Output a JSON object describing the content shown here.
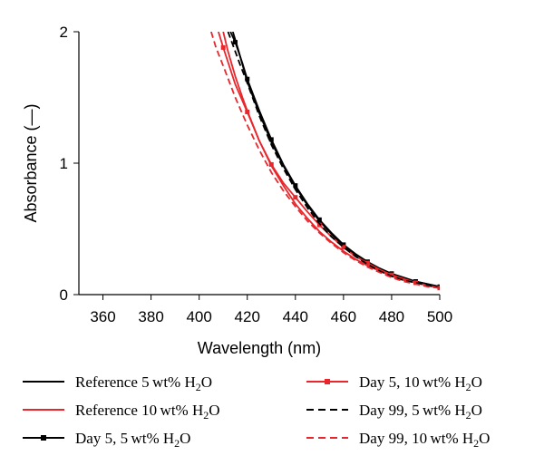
{
  "chart_data": {
    "type": "line",
    "xlabel": "Wavelength (nm)",
    "ylabel": "Absorbance (—)",
    "xlim": [
      350,
      500
    ],
    "ylim": [
      0,
      2
    ],
    "xticks": [
      "360",
      "380",
      "400",
      "420",
      "440",
      "460",
      "480",
      "500"
    ],
    "yticks": [
      "0",
      "1",
      "2"
    ],
    "grid": false,
    "legend_position": "bottom",
    "series": [
      {
        "name": "Reference 5 wt% H2O",
        "label_main": "Reference 5 wt% H",
        "label_sub": "2",
        "label_tail": "O",
        "color": "#000000",
        "dash": "solid",
        "marker": "none",
        "x": [
          414,
          416,
          418,
          420,
          425,
          430,
          435,
          440,
          445,
          450,
          455,
          460,
          465,
          470,
          475,
          480,
          485,
          490,
          495,
          500
        ],
        "y": [
          2.0,
          1.88,
          1.75,
          1.62,
          1.38,
          1.16,
          0.98,
          0.82,
          0.68,
          0.56,
          0.46,
          0.37,
          0.3,
          0.24,
          0.19,
          0.15,
          0.12,
          0.1,
          0.08,
          0.06
        ]
      },
      {
        "name": "Reference 10 wt% H2O",
        "label_main": "Reference 10 wt% H",
        "label_sub": "2",
        "label_tail": "O",
        "color": "#e8262b",
        "dash": "solid",
        "marker": "none",
        "x": [
          410,
          412,
          415,
          418,
          420,
          425,
          430,
          435,
          440,
          445,
          450,
          455,
          460,
          465,
          470,
          475,
          480,
          485,
          490,
          495,
          500
        ],
        "y": [
          2.0,
          1.85,
          1.66,
          1.5,
          1.4,
          1.17,
          0.98,
          0.83,
          0.69,
          0.58,
          0.48,
          0.4,
          0.33,
          0.27,
          0.22,
          0.18,
          0.14,
          0.11,
          0.09,
          0.07,
          0.06
        ]
      },
      {
        "name": "Day 5, 5 wt% H2O",
        "label_main": "Day 5, 5 wt% H",
        "label_sub": "2",
        "label_tail": "O",
        "color": "#000000",
        "dash": "solid",
        "marker": "square",
        "x": [
          413,
          415,
          418,
          420,
          425,
          430,
          435,
          440,
          445,
          450,
          455,
          460,
          465,
          470,
          475,
          480,
          485,
          490,
          495,
          500
        ],
        "y": [
          2.0,
          1.92,
          1.76,
          1.64,
          1.4,
          1.18,
          0.99,
          0.83,
          0.69,
          0.57,
          0.47,
          0.38,
          0.31,
          0.25,
          0.2,
          0.16,
          0.13,
          0.1,
          0.08,
          0.06
        ]
      },
      {
        "name": "Day 5, 10 wt% H2O",
        "label_main": "Day 5, 10 wt% H",
        "label_sub": "2",
        "label_tail": "O",
        "color": "#e8262b",
        "dash": "solid",
        "marker": "square",
        "x": [
          408,
          410,
          415,
          420,
          425,
          430,
          435,
          440,
          445,
          450,
          455,
          460,
          465,
          470,
          475,
          480,
          485,
          490,
          495,
          500
        ],
        "y": [
          2.0,
          1.88,
          1.6,
          1.39,
          1.17,
          0.99,
          0.85,
          0.74,
          0.63,
          0.53,
          0.44,
          0.36,
          0.29,
          0.24,
          0.19,
          0.15,
          0.12,
          0.09,
          0.07,
          0.05
        ]
      },
      {
        "name": "Day 99, 5 wt% H2O",
        "label_main": "Day 99, 5 wt% H",
        "label_sub": "2",
        "label_tail": "O",
        "color": "#000000",
        "dash": "dashed",
        "marker": "none",
        "x": [
          412,
          414,
          417,
          420,
          425,
          430,
          435,
          440,
          445,
          450,
          455,
          460,
          465,
          470,
          475,
          480,
          485,
          490,
          495,
          500
        ],
        "y": [
          2.0,
          1.9,
          1.75,
          1.61,
          1.36,
          1.14,
          0.96,
          0.8,
          0.66,
          0.54,
          0.44,
          0.36,
          0.29,
          0.23,
          0.18,
          0.14,
          0.11,
          0.09,
          0.07,
          0.05
        ]
      },
      {
        "name": "Day 99, 10 wt% H2O",
        "label_main": "Day 99, 10 wt% H",
        "label_sub": "2",
        "label_tail": "O",
        "color": "#e8262b",
        "dash": "dashed",
        "marker": "none",
        "x": [
          405,
          407,
          410,
          415,
          420,
          425,
          430,
          435,
          440,
          445,
          450,
          455,
          460,
          465,
          470,
          475,
          480,
          485,
          490,
          495,
          500
        ],
        "y": [
          2.0,
          1.88,
          1.74,
          1.5,
          1.29,
          1.1,
          0.93,
          0.79,
          0.67,
          0.56,
          0.47,
          0.39,
          0.32,
          0.26,
          0.21,
          0.17,
          0.13,
          0.1,
          0.08,
          0.06,
          0.05
        ]
      }
    ]
  }
}
